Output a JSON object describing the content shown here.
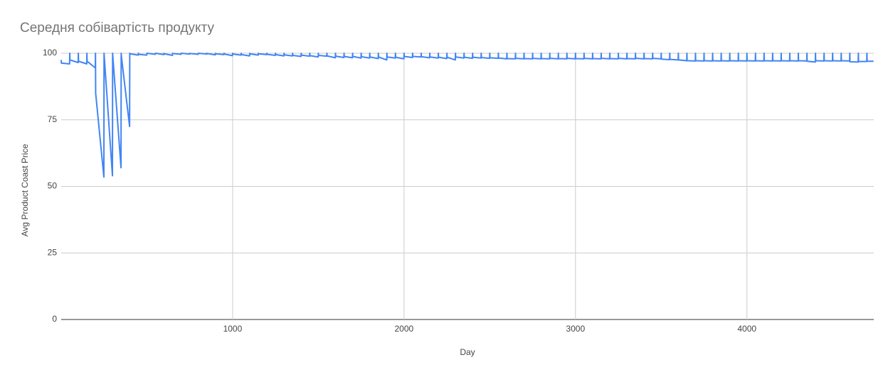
{
  "chart_data": {
    "type": "line",
    "title": "Середня собівартість продукту",
    "x_label": "Day",
    "y_label": "Avg Product Coast Price",
    "color": "#4285f4",
    "grid": true,
    "xlim": [
      0,
      4740
    ],
    "xticks": [
      1000,
      2000,
      3000,
      4000
    ],
    "ylim": [
      0,
      100
    ],
    "yticks": [
      0,
      25,
      50,
      75,
      100
    ],
    "x": [
      0,
      1,
      49,
      50,
      51,
      99,
      100,
      101,
      149,
      150,
      151,
      199,
      200,
      201,
      249,
      250,
      251,
      299,
      300,
      301,
      349,
      350,
      351,
      399,
      400,
      401,
      449,
      450,
      451,
      499,
      500,
      501,
      549,
      550,
      551,
      599,
      600,
      601,
      649,
      650,
      651,
      699,
      700,
      701,
      749,
      750,
      751,
      799,
      800,
      801,
      849,
      850,
      851,
      899,
      900,
      901,
      949,
      950,
      951,
      999,
      1000,
      1001,
      1049,
      1050,
      1051,
      1099,
      1100,
      1101,
      1149,
      1150,
      1151,
      1199,
      1200,
      1201,
      1249,
      1250,
      1251,
      1299,
      1300,
      1301,
      1349,
      1350,
      1351,
      1399,
      1400,
      1401,
      1449,
      1450,
      1451,
      1499,
      1500,
      1501,
      1549,
      1550,
      1551,
      1599,
      1600,
      1601,
      1649,
      1650,
      1651,
      1699,
      1700,
      1701,
      1749,
      1750,
      1751,
      1799,
      1800,
      1801,
      1849,
      1850,
      1851,
      1899,
      1900,
      1901,
      1949,
      1950,
      1951,
      1999,
      2000,
      2001,
      2049,
      2050,
      2051,
      2099,
      2100,
      2101,
      2149,
      2150,
      2151,
      2199,
      2200,
      2201,
      2249,
      2250,
      2251,
      2299,
      2300,
      2301,
      2349,
      2350,
      2351,
      2399,
      2400,
      2401,
      2449,
      2450,
      2451,
      2499,
      2500,
      2501,
      2549,
      2550,
      2551,
      2599,
      2600,
      2601,
      2649,
      2650,
      2651,
      2699,
      2700,
      2701,
      2749,
      2750,
      2751,
      2799,
      2800,
      2801,
      2849,
      2850,
      2851,
      2899,
      2900,
      2901,
      2949,
      2950,
      2951,
      2999,
      3000,
      3001,
      3049,
      3050,
      3051,
      3099,
      3100,
      3101,
      3149,
      3150,
      3151,
      3199,
      3200,
      3201,
      3249,
      3250,
      3251,
      3299,
      3300,
      3301,
      3349,
      3350,
      3351,
      3399,
      3400,
      3401,
      3449,
      3450,
      3451,
      3499,
      3500,
      3501,
      3549,
      3550,
      3551,
      3599,
      3600,
      3601,
      3649,
      3650,
      3651,
      3699,
      3700,
      3701,
      3749,
      3750,
      3751,
      3799,
      3800,
      3801,
      3849,
      3850,
      3851,
      3899,
      3900,
      3901,
      3949,
      3950,
      3951,
      3999,
      4000,
      4001,
      4049,
      4050,
      4051,
      4099,
      4100,
      4101,
      4149,
      4150,
      4151,
      4199,
      4200,
      4201,
      4249,
      4250,
      4251,
      4299,
      4300,
      4301,
      4349,
      4350,
      4351,
      4399,
      4400,
      4401,
      4449,
      4450,
      4451,
      4499,
      4500,
      4501,
      4549,
      4550,
      4551,
      4599,
      4600,
      4601,
      4649,
      4650,
      4651,
      4699,
      4700,
      4701,
      4739
    ],
    "values": [
      97.5,
      96.3,
      96,
      100,
      97.5,
      96.5,
      100,
      97,
      96,
      100,
      97,
      94.5,
      100,
      85,
      53.5,
      100,
      99,
      54,
      100,
      99,
      57,
      100,
      99,
      72.5,
      100,
      99.8,
      99.3,
      100,
      99.6,
      99.3,
      100,
      100,
      99.6,
      100,
      100,
      99.5,
      100,
      99.8,
      99.2,
      100,
      99.9,
      99.6,
      100,
      100,
      99.7,
      100,
      99.9,
      99.6,
      100,
      100,
      99.7,
      100,
      99.9,
      99.4,
      100,
      99.8,
      99.5,
      100,
      99.7,
      99.1,
      100,
      99.7,
      99.3,
      100,
      99.5,
      99,
      100,
      99.8,
      99.3,
      100,
      99.8,
      99.5,
      100,
      99.6,
      99.2,
      100,
      99.5,
      99,
      100,
      99.4,
      99,
      100,
      99.2,
      98.8,
      100,
      99.3,
      98.9,
      100,
      99.1,
      98.6,
      100,
      99.2,
      98.9,
      100,
      99,
      98.3,
      100,
      98.9,
      98.4,
      100,
      98.8,
      98.3,
      100,
      98.8,
      98.2,
      100,
      98.7,
      98.2,
      100,
      98.6,
      98,
      100,
      98.6,
      97.5,
      100,
      98.6,
      98.2,
      100,
      98.5,
      97.9,
      100,
      98.8,
      98.4,
      100,
      98.8,
      98.6,
      100,
      98.7,
      98.3,
      100,
      98.6,
      98.2,
      100,
      98.5,
      98,
      100,
      98.5,
      97.5,
      100,
      98.6,
      98.2,
      100,
      98.5,
      98.1,
      100,
      98.5,
      98.2,
      100,
      98.4,
      98.1,
      100,
      98.3,
      98.1,
      100,
      98.2,
      97.9,
      100,
      98,
      97.9,
      100,
      98.1,
      97.9,
      100,
      98,
      97.9,
      100,
      98.1,
      97.9,
      100,
      98,
      97.9,
      100,
      98.1,
      97.9,
      100,
      98,
      97.9,
      100,
      98.1,
      97.9,
      100,
      98,
      97.9,
      100,
      98.1,
      97.9,
      100,
      98,
      97.9,
      100,
      98.1,
      97.9,
      100,
      98,
      97.9,
      100,
      98.1,
      97.9,
      100,
      98,
      97.9,
      100,
      98.1,
      97.9,
      100,
      98,
      97.9,
      100,
      98.1,
      97.9,
      100,
      97.8,
      97.6,
      100,
      97.7,
      97.5,
      100,
      97.5,
      97.2,
      100,
      97.2,
      97.1,
      100,
      97.2,
      97.1,
      100,
      97.2,
      97.1,
      100,
      97.2,
      97.1,
      100,
      97.2,
      97.1,
      100,
      97.2,
      97.1,
      100,
      97.2,
      97.1,
      100,
      97.2,
      97.1,
      100,
      97.2,
      97.1,
      100,
      97.2,
      97.1,
      100,
      97.2,
      97.1,
      100,
      97.2,
      97.1,
      100,
      97.2,
      97.1,
      100,
      97.2,
      97.1,
      100,
      97,
      96.7,
      100,
      97.2,
      97.1,
      100,
      97.2,
      97.1,
      100,
      97.2,
      97.1,
      100,
      97.2,
      97.1,
      100,
      96.8,
      96.7,
      100,
      96.9,
      96.9,
      100,
      97,
      97
    ]
  }
}
